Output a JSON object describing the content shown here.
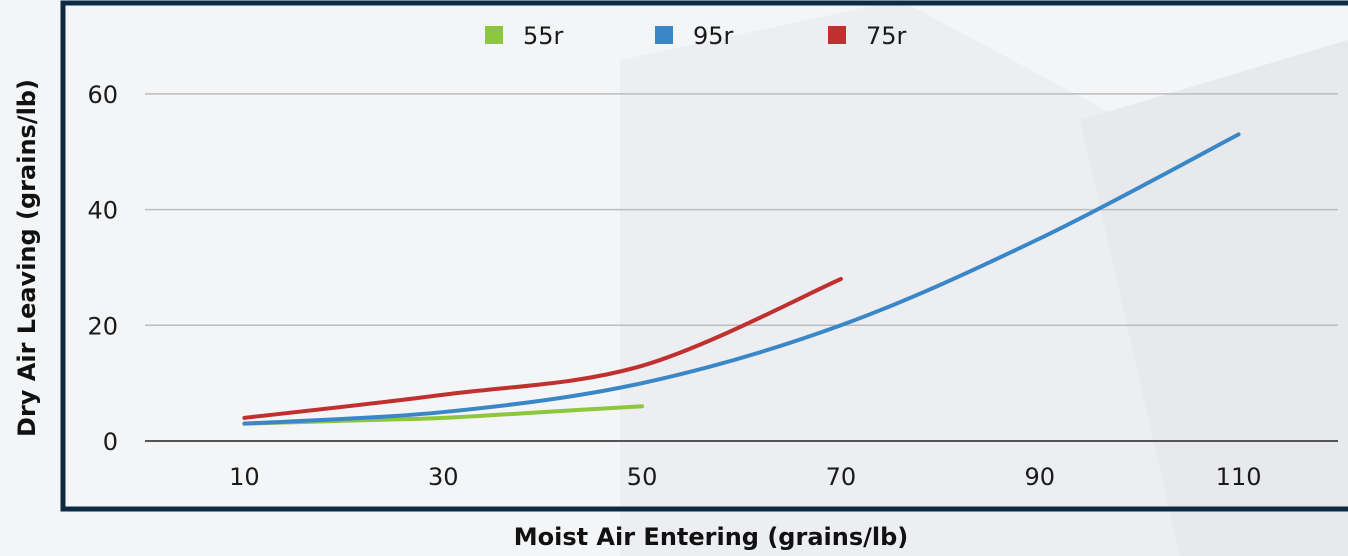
{
  "chart_data": {
    "type": "line",
    "xlabel": "Moist Air Entering (grains/lb)",
    "ylabel": "Dry Air Leaving (grains/lb)",
    "x_ticks": [
      "10",
      "30",
      "50",
      "70",
      "90",
      "110"
    ],
    "y_ticks": [
      "0",
      "20",
      "40",
      "60"
    ],
    "xlim": [
      0,
      120
    ],
    "ylim": [
      0,
      70
    ],
    "grid": true,
    "legend_position": "top",
    "series": [
      {
        "name": "55r",
        "color": "#8dc63f",
        "x": [
          10,
          20,
          30,
          40,
          50
        ],
        "y": [
          3,
          3.5,
          4,
          5,
          6
        ]
      },
      {
        "name": "95r",
        "color": "#3a87c8",
        "x": [
          10,
          30,
          50,
          70,
          90,
          110
        ],
        "y": [
          3,
          5,
          10,
          20,
          35,
          53
        ]
      },
      {
        "name": "75r",
        "color": "#c0302f",
        "x": [
          10,
          30,
          50,
          70
        ],
        "y": [
          4,
          8,
          13,
          28
        ]
      }
    ]
  }
}
